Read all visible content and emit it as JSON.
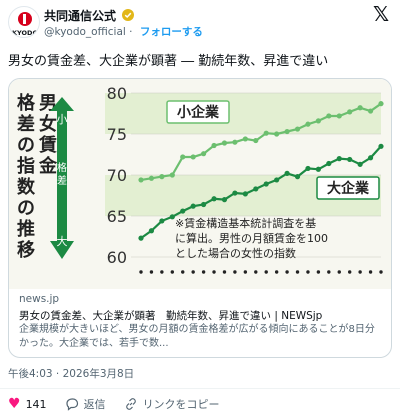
{
  "account": {
    "name": "共同通信公式",
    "logo_text": "KYODO",
    "handle": "@kyodo_official",
    "separator": "·",
    "follow_label": "フォローする"
  },
  "tweet_text": "男女の賃金差、大企業が顕著 ― 勤続年数、昇進で違い",
  "chart_data": {
    "type": "line",
    "title": "男女賃金格差の指数の推移",
    "axis_arrow_top": "小",
    "axis_arrow_mid": "格差",
    "axis_arrow_bottom": "大",
    "ylim": [
      60,
      80
    ],
    "yticks": [
      "80",
      "75",
      "70",
      "65",
      "60"
    ],
    "series": [
      {
        "name": "小企業",
        "color": "#6cbf6f",
        "values": [
          69.4,
          69.6,
          69.8,
          70.0,
          72.2,
          72.2,
          72.6,
          73.6,
          73.9,
          74.0,
          74.4,
          74.2,
          75.1,
          75.0,
          75.3,
          75.6,
          76.2,
          76.6,
          77.2,
          77.2,
          77.7,
          78.2,
          77.8,
          78.7
        ]
      },
      {
        "name": "大企業",
        "color": "#1c8a43",
        "values": [
          62.3,
          63.2,
          64.4,
          64.9,
          65.6,
          66.2,
          66.4,
          67.1,
          67.0,
          67.8,
          67.7,
          68.3,
          68.9,
          69.4,
          70.2,
          69.8,
          70.8,
          70.7,
          71.4,
          72.0,
          71.9,
          71.3,
          72.1,
          73.5
        ]
      }
    ],
    "note_line1": "※賃金構造基本統計調査を基",
    "note_line2": "に算出。男性の月額賃金を100",
    "note_line3": "とした場合の女性の指数"
  },
  "card": {
    "domain": "news.jp",
    "title": "男女の賃金差、大企業が顕著　勤続年数、昇進で違い | NEWSjp",
    "description": "企業規模が大きいほど、男女の月額の賃金格差が広がる傾向にあることが8日分かった。大企業では、若手で数..."
  },
  "timestamp": "午後4:03 · 2026年3月8日",
  "actions": {
    "like_count": "141",
    "reply_label": "返信",
    "copy_link_label": "リンクをコピー"
  }
}
